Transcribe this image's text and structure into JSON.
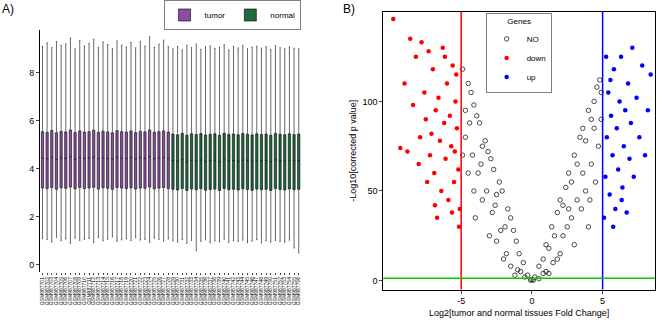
{
  "chart_data": [
    {
      "type": "box",
      "title": "A)",
      "legend": "top right",
      "grid": false,
      "ylim": [
        -0.3,
        9.8
      ],
      "yticks": [
        0,
        2,
        4,
        6,
        8
      ],
      "series": [
        {
          "name": "tumor",
          "color": "#8a4fa0",
          "samples": [
            "GSM987701",
            "GSM987702",
            "GSM987703",
            "GSM987704",
            "GSM987705",
            "GSM987706",
            "GSM987707",
            "GSM987708",
            "GSM987709",
            "GSM987710",
            "GSM987711",
            "GSM987712",
            "GSM987713",
            "GSM987714",
            "GSM987715",
            "GSM987716",
            "GSM987717",
            "GSM987718",
            "GSM987719",
            "GSM987720",
            "GSM987721",
            "GSM987722",
            "GSM987723",
            "GSM987724",
            "GSM987725",
            "GSM987726",
            "GSM987727",
            "GSM987728"
          ],
          "median": [
            4.45,
            4.42,
            4.48,
            4.4,
            4.46,
            4.44,
            4.5,
            4.41,
            4.47,
            4.43,
            4.45,
            4.49,
            4.42,
            4.46,
            4.44,
            4.4,
            4.48,
            4.45,
            4.43,
            4.47,
            4.41,
            4.46,
            4.44,
            4.5,
            4.42,
            4.45,
            4.47,
            4.43
          ],
          "q1": [
            3.2,
            3.18,
            3.22,
            3.15,
            3.21,
            3.19,
            3.24,
            3.17,
            3.22,
            3.18,
            3.2,
            3.23,
            3.16,
            3.21,
            3.19,
            3.15,
            3.22,
            3.2,
            3.18,
            3.21,
            3.16,
            3.2,
            3.19,
            3.24,
            3.17,
            3.2,
            3.22,
            3.18
          ],
          "q3": [
            5.55,
            5.52,
            5.6,
            5.5,
            5.56,
            5.54,
            5.62,
            5.51,
            5.58,
            5.53,
            5.55,
            5.61,
            5.52,
            5.57,
            5.54,
            5.5,
            5.59,
            5.55,
            5.53,
            5.58,
            5.51,
            5.56,
            5.54,
            5.62,
            5.52,
            5.55,
            5.58,
            5.53
          ],
          "lower": [
            1.1,
            1.05,
            0.95,
            1.15,
            1.0,
            1.08,
            0.9,
            1.12,
            1.02,
            1.06,
            1.1,
            0.92,
            1.14,
            1.0,
            1.07,
            1.16,
            0.98,
            1.04,
            1.09,
            1.01,
            1.13,
            1.03,
            1.06,
            0.94,
            1.11,
            1.05,
            0.99,
            1.08
          ],
          "upper": [
            9.1,
            9.25,
            9.05,
            9.3,
            9.15,
            9.2,
            9.45,
            9.0,
            9.35,
            9.12,
            9.22,
            9.4,
            9.05,
            9.28,
            9.18,
            9.02,
            9.33,
            9.15,
            9.08,
            9.26,
            9.04,
            9.3,
            9.12,
            9.5,
            9.06,
            9.2,
            9.36,
            9.1
          ]
        },
        {
          "name": "normal",
          "color": "#1e6b3c",
          "samples": [
            "GSM987729",
            "GSM987730",
            "GSM987731",
            "GSM987732",
            "GSM987733",
            "GSM987734",
            "GSM987735",
            "GSM987736",
            "GSM987737",
            "GSM987738",
            "GSM987739",
            "GSM987740",
            "GSM987741",
            "GSM987742",
            "GSM987743",
            "GSM987744",
            "GSM987745",
            "GSM987746",
            "GSM987747",
            "GSM987748",
            "GSM987749",
            "GSM987750",
            "GSM987751",
            "GSM987752",
            "GSM987753",
            "GSM987754",
            "GSM987755",
            "GSM987756"
          ],
          "median": [
            4.35,
            4.32,
            4.38,
            4.3,
            4.36,
            4.33,
            4.37,
            4.31,
            4.34,
            4.36,
            4.3,
            4.38,
            4.33,
            4.35,
            4.32,
            4.37,
            4.34,
            4.31,
            4.36,
            4.33,
            4.35,
            4.3,
            4.38,
            4.34,
            4.32,
            4.36,
            4.33,
            4.35
          ],
          "q1": [
            3.15,
            3.12,
            3.18,
            3.1,
            3.16,
            3.13,
            3.17,
            3.11,
            3.14,
            3.16,
            3.1,
            3.18,
            3.13,
            3.15,
            3.12,
            3.17,
            3.14,
            3.11,
            3.16,
            3.13,
            3.15,
            3.1,
            3.18,
            3.14,
            3.12,
            3.16,
            3.13,
            3.15
          ],
          "q3": [
            5.45,
            5.42,
            5.48,
            5.4,
            5.46,
            5.43,
            5.47,
            5.41,
            5.44,
            5.46,
            5.4,
            5.48,
            5.43,
            5.45,
            5.42,
            5.47,
            5.44,
            5.41,
            5.46,
            5.43,
            5.45,
            5.4,
            5.48,
            5.44,
            5.42,
            5.46,
            5.43,
            5.45
          ],
          "lower": [
            1.0,
            0.95,
            1.05,
            0.9,
            1.02,
            0.6,
            0.98,
            1.04,
            0.92,
            1.0,
            0.96,
            1.06,
            0.94,
            1.01,
            0.97,
            1.03,
            0.93,
            0.99,
            1.05,
            0.91,
            1.0,
            0.95,
            1.02,
            0.97,
            0.94,
            1.03,
            0.7,
            0.5
          ],
          "upper": [
            9.0,
            9.1,
            8.95,
            9.15,
            9.05,
            9.2,
            8.98,
            9.08,
            9.12,
            9.02,
            9.06,
            9.18,
            8.96,
            9.1,
            9.04,
            9.14,
            9.0,
            9.07,
            9.11,
            9.03,
            9.09,
            8.97,
            9.13,
            9.05,
            9.01,
            9.08,
            9.02,
            9.0
          ]
        }
      ]
    },
    {
      "type": "scatter",
      "title": "B)",
      "legend": "top center",
      "legend_title": "Genes",
      "grid": false,
      "x_label": "Log2[tumor and normal tissues Fold Change]",
      "y_label": "-Log10[corrected p value]",
      "xlim": [
        -10.5,
        8.7
      ],
      "xticks": [
        -5,
        0,
        5
      ],
      "ylim": [
        -5,
        150
      ],
      "yticks": [
        0,
        50,
        100
      ],
      "cutoffs": [
        {
          "axis": "x",
          "value": -5,
          "color": "#ff0000"
        },
        {
          "axis": "x",
          "value": 5,
          "color": "#0000ff"
        },
        {
          "axis": "y",
          "value": 1.3,
          "color": "#00cc00"
        }
      ],
      "series": [
        {
          "name": "NO",
          "color": "#000000",
          "marker": "open circle",
          "x": [
            0,
            0.2,
            -0.3,
            0.5,
            -0.6,
            0.8,
            -0.9,
            1,
            -1.1,
            1.2,
            -1.3,
            1.4,
            -1.5,
            1.6,
            -1.7,
            1.8,
            -1.9,
            2,
            -2.1,
            2.2,
            -2.3,
            2.4,
            -2.5,
            2.6,
            -2.7,
            2.8,
            -2.9,
            3,
            -3.1,
            3.2,
            -3.3,
            3.4,
            -3.5,
            3.6,
            -3.7,
            3.8,
            -3.9,
            4,
            -4.1,
            4.2,
            -4.3,
            4.4,
            -4.5,
            4.6,
            -4.7,
            4.8,
            -4.9,
            4.9,
            1,
            -1,
            2,
            -2,
            3,
            -3,
            4,
            -4,
            1.5,
            -1.5,
            2.5,
            -2.5,
            3.5,
            -3.5,
            4.5,
            -4.5,
            0.5,
            -0.5,
            1.2,
            -1.2,
            2.8,
            -2.8,
            3.8,
            -3.8,
            4.2,
            -4.2,
            4.7,
            -4.7,
            3.2,
            -3.2,
            2.2,
            -2.2,
            1.8,
            -1.8,
            0.8,
            -0.8,
            0.1,
            -0.1,
            4.4,
            -4.4,
            3.6,
            -3.6,
            2.6,
            -2.6,
            4.9,
            -4.9,
            4.1,
            -4.1
          ],
          "values": [
            0.5,
            2,
            3,
            8,
            10,
            12,
            15,
            20,
            22,
            18,
            28,
            30,
            35,
            25,
            40,
            38,
            30,
            45,
            50,
            42,
            55,
            52,
            48,
            60,
            62,
            55,
            68,
            70,
            72,
            65,
            78,
            80,
            75,
            85,
            88,
            78,
            92,
            95,
            98,
            90,
            105,
            100,
            110,
            108,
            95,
            112,
            118,
            105,
            5,
            6,
            15,
            12,
            20,
            25,
            30,
            35,
            10,
            8,
            30,
            22,
            40,
            45,
            55,
            60,
            1,
            2,
            4,
            3,
            35,
            38,
            50,
            60,
            65,
            70,
            75,
            80,
            45,
            50,
            25,
            28,
            12,
            15,
            4,
            5,
            0.2,
            0.3,
            85,
            88,
            60,
            65,
            40,
            42,
            90,
            70,
            45,
            50
          ]
        },
        {
          "name": "down",
          "color": "#ff0000",
          "marker": "circle",
          "x": [
            -5.1,
            -5.2,
            -5.3,
            -5.4,
            -5.5,
            -5.6,
            -5.7,
            -5.8,
            -5.9,
            -6.0,
            -6.1,
            -6.2,
            -6.3,
            -6.4,
            -6.5,
            -6.6,
            -6.7,
            -6.8,
            -6.9,
            -7.0,
            -7.1,
            -7.2,
            -7.3,
            -7.4,
            -7.5,
            -7.6,
            -7.8,
            -7.9,
            -8.0,
            -8.2,
            -8.4,
            -8.6,
            -8.8,
            -9.0,
            -9.3,
            -9.8,
            -5.15,
            -5.35,
            -5.65,
            -6.15,
            -6.85,
            -5.45
          ],
          "values": [
            40,
            62,
            85,
            100,
            55,
            120,
            75,
            92,
            45,
            110,
            68,
            88,
            130,
            50,
            78,
            102,
            35,
            95,
            60,
            118,
            82,
            70,
            128,
            55,
            90,
            105,
            133,
            80,
            65,
            125,
            98,
            135,
            72,
            110,
            74,
            146,
            30,
            115,
            38,
            125,
            42,
            72
          ]
        },
        {
          "name": "up",
          "color": "#0000ff",
          "marker": "circle",
          "x": [
            5.1,
            5.2,
            5.3,
            5.4,
            5.5,
            5.6,
            5.7,
            5.8,
            5.9,
            6.0,
            6.1,
            6.2,
            6.3,
            6.4,
            6.5,
            6.6,
            6.7,
            6.8,
            6.9,
            7.0,
            7.2,
            7.4,
            7.6,
            7.8,
            8.0,
            8.2,
            8.4,
            5.25,
            5.75,
            6.35,
            7.1,
            5.55
          ],
          "values": [
            35,
            58,
            80,
            105,
            48,
            92,
            70,
            118,
            40,
            85,
            62,
            100,
            125,
            52,
            75,
            95,
            38,
            110,
            68,
            88,
            58,
            102,
            80,
            120,
            70,
            95,
            115,
            125,
            30,
            45,
            130,
            112
          ]
        }
      ]
    }
  ]
}
